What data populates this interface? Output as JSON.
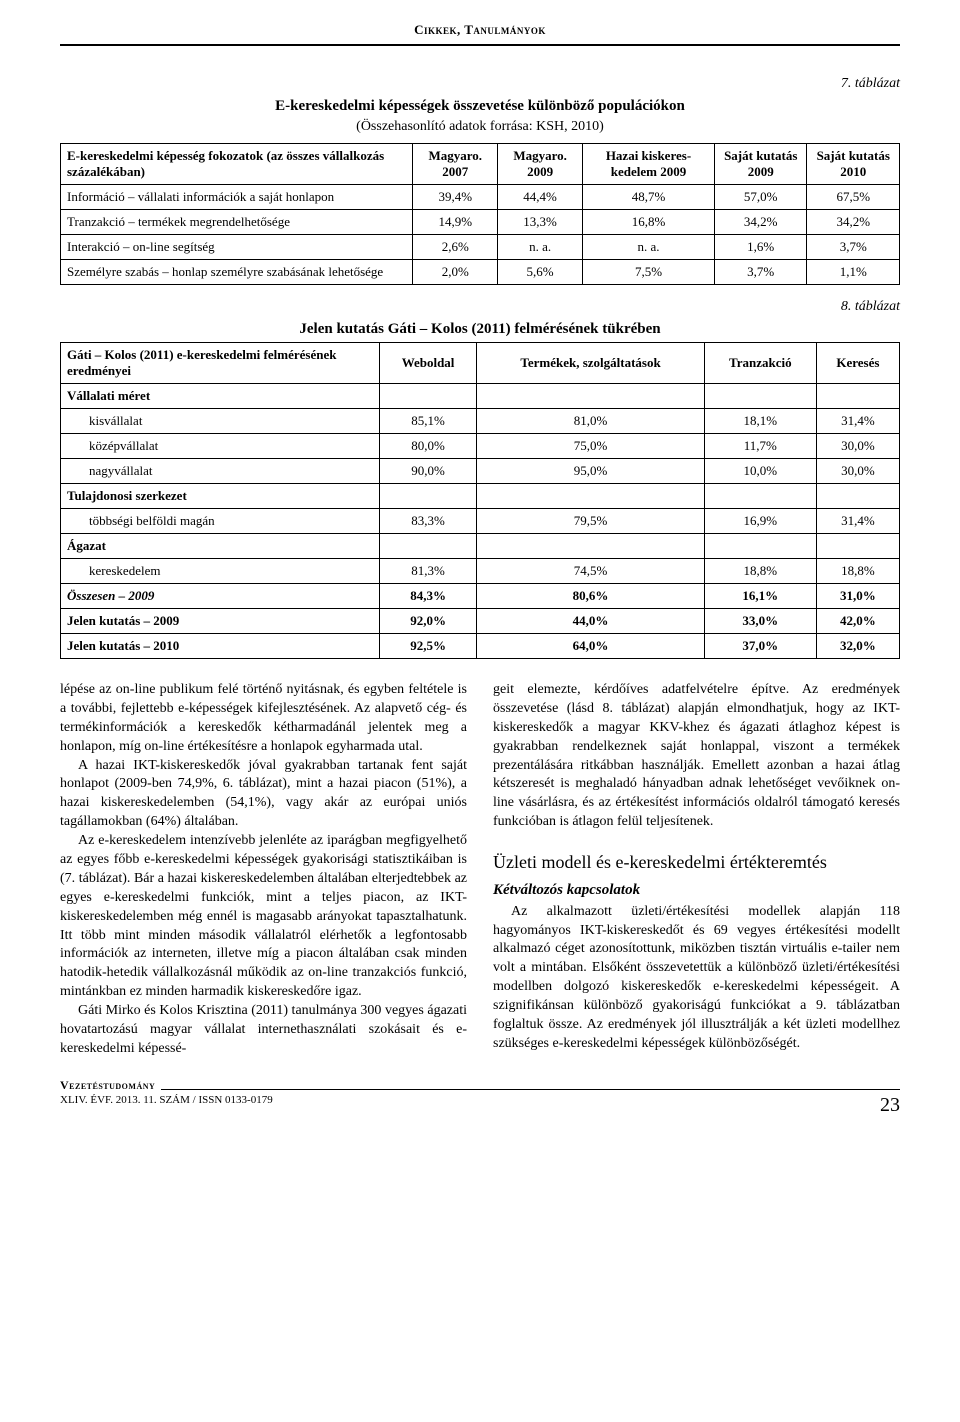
{
  "header": {
    "running_head": "Cikkek, Tanulmányok"
  },
  "table7": {
    "label": "7. táblázat",
    "title": "E-kereskedelmi képességek összevetése különböző populációkon",
    "subtitle": "(Összehasonlító adatok forrása: KSH, 2010)",
    "columns": [
      "E-kereskedelmi képesség fokozatok\n(az összes vállalkozás százalékában)",
      "Magyaro. 2007",
      "Magyaro. 2009",
      "Hazai kiskeres-kedelem 2009",
      "Saját kutatás 2009",
      "Saját kutatás 2010"
    ],
    "rows": [
      [
        "Információ – vállalati információk a saját honlapon",
        "39,4%",
        "44,4%",
        "48,7%",
        "57,0%",
        "67,5%"
      ],
      [
        "Tranzakció – termékek megrendelhetősége",
        "14,9%",
        "13,3%",
        "16,8%",
        "34,2%",
        "34,2%"
      ],
      [
        "Interakció – on-line segítség",
        "2,6%",
        "n. a.",
        "n. a.",
        "1,6%",
        "3,7%"
      ],
      [
        "Személyre szabás – honlap személyre szabásának lehetősége",
        "2,0%",
        "5,6%",
        "7,5%",
        "3,7%",
        "1,1%"
      ]
    ]
  },
  "table8": {
    "label": "8. táblázat",
    "title": "Jelen kutatás Gáti – Kolos (2011) felmérésének tükrében",
    "columns": [
      "Gáti – Kolos (2011) e-kereskedelmi felmérésének eredményei",
      "Weboldal",
      "Termékek, szolgáltatások",
      "Tranzakció",
      "Keresés"
    ],
    "groups": [
      {
        "heading": "Vállalati méret",
        "rows": [
          [
            "kisvállalat",
            "85,1%",
            "81,0%",
            "18,1%",
            "31,4%"
          ],
          [
            "középvállalat",
            "80,0%",
            "75,0%",
            "11,7%",
            "30,0%"
          ],
          [
            "nagyvállalat",
            "90,0%",
            "95,0%",
            "10,0%",
            "30,0%"
          ]
        ]
      },
      {
        "heading": "Tulajdonosi szerkezet",
        "rows": [
          [
            "többségi belföldi magán",
            "83,3%",
            "79,5%",
            "16,9%",
            "31,4%"
          ]
        ]
      },
      {
        "heading": "Ágazat",
        "rows": [
          [
            "kereskedelem",
            "81,3%",
            "74,5%",
            "18,8%",
            "18,8%"
          ]
        ]
      }
    ],
    "summary_rows": [
      {
        "label": "Összesen – 2009",
        "cells": [
          "84,3%",
          "80,6%",
          "16,1%",
          "31,0%"
        ],
        "italic_label": true
      },
      {
        "label": "Jelen kutatás – 2009",
        "cells": [
          "92,0%",
          "44,0%",
          "33,0%",
          "42,0%"
        ],
        "italic_label": false
      },
      {
        "label": "Jelen kutatás – 2010",
        "cells": [
          "92,5%",
          "64,0%",
          "37,0%",
          "32,0%"
        ],
        "italic_label": false
      }
    ]
  },
  "body": {
    "left": [
      "lépése az on-line publikum felé történő nyitásnak, és egyben feltétele is a további, fejlettebb e-képességek kifejlesztésének. Az alapvető cég- és termékinformációk a kereskedők kétharmadánál jelentek meg a honlapon, míg on-line értékesítésre a honlapok egyharmada utal.",
      "A hazai IKT-kiskereskedők jóval gyakrabban tartanak fent saját honlapot (2009-ben 74,9%, 6. táblázat), mint a hazai piacon (51%), a hazai kiskereskedelemben (54,1%), vagy akár az európai uniós tagállamokban (64%) általában.",
      "Az e-kereskedelem intenzívebb jelenléte az iparágban megfigyelhető az egyes főbb e-kereskedelmi képességek gyakorisági statisztikáiban is (7. táblázat). Bár a hazai kiskereskedelemben általában elterjedtebbek az egyes e-kereskedelmi funkciók, mint a teljes piacon, az IKT-kiskereskedelemben még ennél is magasabb arányokat tapasztalhatunk. Itt több mint minden második vállalatról elérhetők a legfontosabb információk az interneten, illetve míg a piacon általában csak minden hatodik-hetedik vállalkozásnál működik az on-line tranzakciós funkció, mintánkban ez minden harmadik kiskereskedőre igaz.",
      "Gáti Mirko és Kolos Krisztina (2011) tanulmánya 300 vegyes ágazati hovatartozású magyar vállalat internethasználati szokásait és e-kereskedelmi képessé-"
    ],
    "right_intro": "geit elemezte, kérdőíves adatfelvételre építve. Az eredmények összevetése (lásd 8. táblázat) alapján elmondhatjuk, hogy az IKT-kiskereskedők a magyar KKV-khez és ágazati átlaghoz képest is gyakrabban rendelkeznek saját honlappal, viszont a termékek prezentálására ritkábban használják. Emellett azonban a hazai átlag kétszeresét is meghaladó hányadban adnak lehetőséget vevőiknek on-line vásárlásra, és az értékesítést információs oldalról támogató keresés funkcióban is átlagon felül teljesítenek.",
    "right_h2": "Üzleti modell és e-kereskedelmi értékteremtés",
    "right_h3": "Kétváltozós kapcsolatok",
    "right_p2": "Az alkalmazott üzleti/értékesítési modellek alapján 118 hagyományos IKT-kiskereskedőt és 69 vegyes értékesítési modellt alkalmazó céget azonosítottunk, miközben tisztán virtuális e-tailer nem volt a mintában. Elsőként összevetettük a különböző üzleti/értékesítési modellben dolgozó kiskereskedők e-kereskedelmi képességeit. A szignifikánsan különböző gyakoriságú funkciókat a 9. táblázatban foglaltuk össze. Az eredmények jól illusztrálják a két üzleti modellhez szükséges e-kereskedelmi képességek különbözőségét."
  },
  "footer": {
    "journal": "Vezetéstudomány",
    "issue": "XLIV. ÉVF. 2013. 11. SZÁM / ISSN 0133-0179",
    "page": "23"
  },
  "style": {
    "page_bg": "#ffffff",
    "text_color": "#000000",
    "border_color": "#000000",
    "body_font_size_pt": 10.5,
    "table_font_size_pt": 10,
    "heading_font_size_pt": 14
  }
}
